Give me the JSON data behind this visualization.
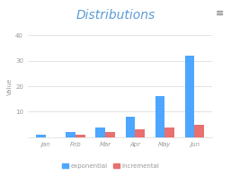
{
  "title": "Distributions",
  "title_color": "#5b9bd5",
  "categories": [
    "Jan",
    "Feb",
    "Mar",
    "Apr",
    "May",
    "Jun"
  ],
  "exponential": [
    1,
    2,
    4,
    8,
    16,
    32
  ],
  "incremental": [
    0,
    1,
    2,
    3,
    4,
    5
  ],
  "bar_color_exp": "#4da6ff",
  "bar_color_inc": "#e87070",
  "ylabel": "Value",
  "ylim": [
    0,
    40
  ],
  "yticks": [
    0,
    10,
    20,
    30,
    40
  ],
  "background_color": "#ffffff",
  "grid_color": "#d8d8d8",
  "legend_labels": [
    "exponential",
    "incremental"
  ],
  "hamburger_color": "#666666",
  "title_fontsize": 10,
  "tick_fontsize": 5,
  "ylabel_fontsize": 5
}
